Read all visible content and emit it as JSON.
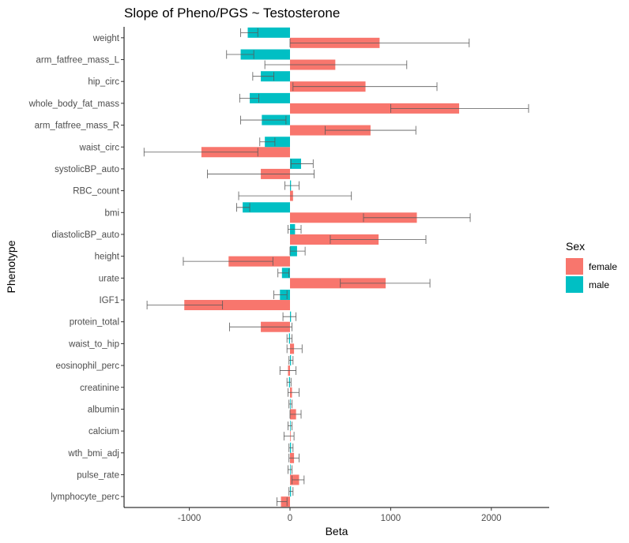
{
  "chart_data": {
    "type": "bar",
    "orientation": "horizontal",
    "title": "Slope of Pheno/PGS ~ Testosterone",
    "xlabel": "Beta",
    "ylabel": "Phenotype",
    "xlim": [
      -1650,
      2550
    ],
    "xticks": [
      -1000,
      0,
      1000,
      2000
    ],
    "xtick_labels": [
      "-1000",
      "0",
      "1000",
      "2000"
    ],
    "grid": false,
    "legend": {
      "title": "Sex",
      "position": "right"
    },
    "categories": [
      "weight",
      "arm_fatfree_mass_L",
      "hip_circ",
      "whole_body_fat_mass",
      "arm_fatfree_mass_R",
      "waist_circ",
      "systolicBP_auto",
      "RBC_count",
      "bmi",
      "diastolicBP_auto",
      "height",
      "urate",
      "IGF1",
      "protein_total",
      "waist_to_hip",
      "eosinophil_perc",
      "creatinine",
      "albumin",
      "calcium",
      "wth_bmi_adj",
      "pulse_rate",
      "lymphocyte_perc"
    ],
    "series": [
      {
        "name": "female",
        "color": "#F8766D",
        "values": [
          890,
          450,
          750,
          1680,
          800,
          -880,
          -290,
          30,
          1260,
          880,
          -610,
          950,
          -1050,
          -290,
          40,
          -20,
          20,
          60,
          0,
          40,
          90,
          -90
        ],
        "ci_low": [
          0,
          -250,
          30,
          1000,
          350,
          -1450,
          -820,
          -510,
          730,
          400,
          -1060,
          500,
          -1420,
          -600,
          -30,
          -100,
          -20,
          0,
          -60,
          -10,
          20,
          -130
        ],
        "ci_high": [
          1780,
          1160,
          1460,
          2370,
          1250,
          -320,
          240,
          610,
          1790,
          1350,
          -170,
          1390,
          -670,
          20,
          120,
          60,
          90,
          110,
          40,
          90,
          140,
          -30
        ]
      },
      {
        "name": "male",
        "color": "#00BFC4",
        "values": [
          -420,
          -490,
          -290,
          -400,
          -280,
          -250,
          110,
          10,
          -470,
          50,
          70,
          -80,
          -100,
          10,
          -10,
          10,
          -10,
          0,
          0,
          10,
          0,
          10
        ],
        "ci_low": [
          -490,
          -630,
          -370,
          -500,
          -490,
          -300,
          10,
          -50,
          -530,
          -20,
          0,
          -120,
          -160,
          -70,
          -30,
          -10,
          -30,
          -10,
          -20,
          -10,
          -20,
          -10
        ],
        "ci_high": [
          -320,
          -360,
          -160,
          -310,
          -40,
          -150,
          230,
          90,
          -400,
          110,
          150,
          -10,
          -30,
          60,
          20,
          30,
          10,
          20,
          20,
          30,
          20,
          30
        ]
      }
    ]
  }
}
